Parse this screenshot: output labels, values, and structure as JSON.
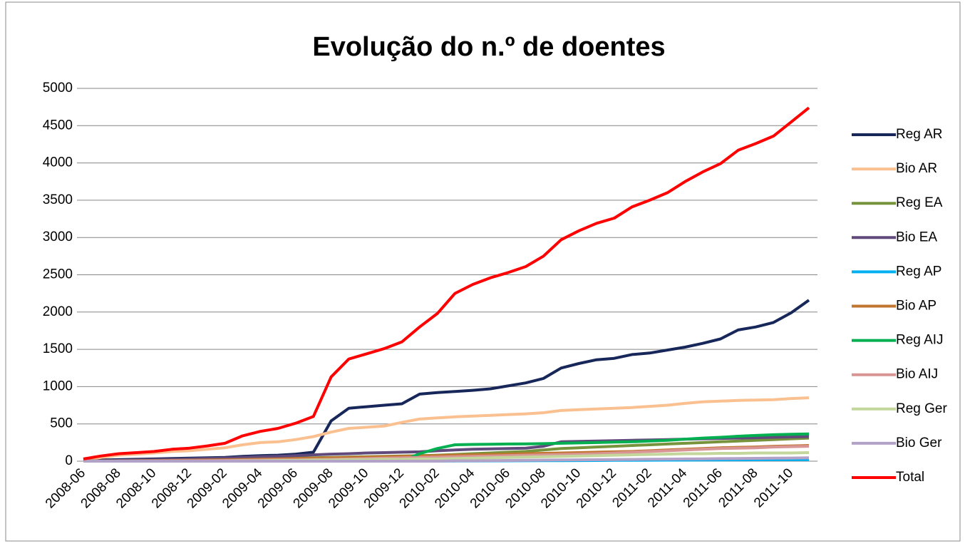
{
  "chart_data": {
    "type": "line",
    "title": "Evolução do n.º de doentes",
    "categories": [
      "2008-06",
      null,
      "2008-08",
      null,
      "2008-10",
      null,
      "2008-12",
      null,
      "2009-02",
      null,
      "2009-04",
      null,
      "2009-06",
      null,
      "2009-08",
      null,
      "2009-10",
      null,
      "2009-12",
      null,
      "2010-02",
      null,
      "2010-04",
      null,
      "2010-06",
      null,
      "2010-08",
      null,
      "2010-10",
      null,
      "2010-12",
      null,
      "2011-02",
      null,
      "2011-04",
      null,
      "2011-06",
      null,
      "2011-08",
      null,
      "2011-10",
      null
    ],
    "ylim": [
      0,
      5000
    ],
    "yticks": [
      0,
      500,
      1000,
      1500,
      2000,
      2500,
      3000,
      3500,
      4000,
      4500,
      5000
    ],
    "grid": true,
    "legend": "right",
    "series": [
      {
        "name": "Reg AR",
        "color": "#17275a",
        "values": [
          5,
          15,
          20,
          25,
          30,
          35,
          40,
          45,
          50,
          65,
          75,
          80,
          95,
          120,
          540,
          710,
          730,
          750,
          770,
          900,
          920,
          935,
          950,
          970,
          1010,
          1050,
          1110,
          1250,
          1310,
          1360,
          1380,
          1430,
          1450,
          1490,
          1530,
          1580,
          1640,
          1760,
          1800,
          1860,
          1990,
          2160
        ]
      },
      {
        "name": "Bio AR",
        "color": "#fac090",
        "values": [
          20,
          50,
          80,
          95,
          110,
          130,
          140,
          160,
          180,
          220,
          250,
          260,
          290,
          330,
          390,
          440,
          455,
          470,
          520,
          565,
          580,
          595,
          605,
          615,
          625,
          635,
          650,
          680,
          690,
          700,
          710,
          720,
          735,
          750,
          775,
          795,
          805,
          815,
          820,
          825,
          840,
          850
        ]
      },
      {
        "name": "Reg EA",
        "color": "#77933c",
        "values": [
          0,
          2,
          5,
          8,
          10,
          12,
          15,
          18,
          20,
          25,
          30,
          35,
          40,
          45,
          50,
          55,
          60,
          65,
          70,
          75,
          80,
          90,
          100,
          110,
          120,
          130,
          150,
          170,
          180,
          190,
          200,
          210,
          220,
          230,
          240,
          250,
          260,
          270,
          280,
          290,
          300,
          310
        ]
      },
      {
        "name": "Bio EA",
        "color": "#604a7b",
        "values": [
          0,
          5,
          10,
          15,
          20,
          25,
          30,
          35,
          40,
          50,
          60,
          65,
          75,
          85,
          95,
          100,
          110,
          115,
          120,
          125,
          140,
          150,
          160,
          165,
          170,
          175,
          200,
          260,
          265,
          270,
          275,
          280,
          285,
          290,
          295,
          300,
          305,
          310,
          315,
          320,
          325,
          330
        ]
      },
      {
        "name": "Reg AP",
        "color": "#00b0f0",
        "values": [
          0,
          0,
          0,
          0,
          0,
          0,
          0,
          0,
          0,
          0,
          0,
          0,
          0,
          0,
          0,
          0,
          0,
          0,
          0,
          0,
          1,
          2,
          3,
          4,
          5,
          6,
          7,
          8,
          9,
          10,
          11,
          12,
          13,
          14,
          15,
          16,
          17,
          18,
          19,
          20,
          20,
          20
        ]
      },
      {
        "name": "Bio AP",
        "color": "#c0762e",
        "values": [
          0,
          2,
          4,
          6,
          8,
          10,
          12,
          15,
          18,
          22,
          26,
          30,
          35,
          40,
          45,
          50,
          55,
          60,
          65,
          70,
          75,
          80,
          85,
          90,
          95,
          100,
          105,
          110,
          115,
          120,
          125,
          130,
          140,
          150,
          160,
          170,
          180,
          185,
          190,
          200,
          205,
          210
        ]
      },
      {
        "name": "Reg AIJ",
        "color": "#00b050",
        "values": [
          0,
          0,
          0,
          0,
          0,
          0,
          0,
          0,
          0,
          0,
          0,
          0,
          0,
          0,
          0,
          0,
          0,
          0,
          0,
          100,
          170,
          220,
          225,
          228,
          230,
          232,
          235,
          240,
          245,
          250,
          255,
          260,
          270,
          280,
          295,
          310,
          320,
          335,
          345,
          355,
          360,
          365
        ]
      },
      {
        "name": "Bio AIJ",
        "color": "#d99594",
        "values": [
          0,
          1,
          2,
          3,
          4,
          5,
          6,
          8,
          10,
          12,
          14,
          16,
          18,
          20,
          25,
          30,
          35,
          40,
          45,
          50,
          55,
          60,
          65,
          70,
          75,
          80,
          85,
          90,
          95,
          100,
          110,
          120,
          130,
          140,
          150,
          160,
          170,
          175,
          180,
          190,
          195,
          200
        ]
      },
      {
        "name": "Reg Ger",
        "color": "#c3d69b",
        "values": [
          0,
          0,
          0,
          0,
          0,
          0,
          0,
          0,
          0,
          5,
          5,
          10,
          10,
          15,
          15,
          20,
          20,
          25,
          25,
          30,
          30,
          35,
          40,
          45,
          50,
          55,
          60,
          65,
          70,
          75,
          80,
          85,
          90,
          95,
          100,
          100,
          105,
          105,
          110,
          110,
          110,
          115
        ]
      },
      {
        "name": "Bio Ger",
        "color": "#b3a2c7",
        "values": [
          0,
          0,
          0,
          0,
          0,
          0,
          0,
          0,
          0,
          0,
          0,
          0,
          0,
          0,
          0,
          0,
          0,
          0,
          0,
          0,
          0,
          5,
          5,
          8,
          10,
          12,
          14,
          16,
          18,
          20,
          22,
          24,
          26,
          28,
          30,
          32,
          34,
          36,
          38,
          40,
          42,
          45
        ]
      },
      {
        "name": "Total",
        "color": "#ff0000",
        "values": [
          30,
          70,
          100,
          115,
          130,
          160,
          175,
          205,
          240,
          340,
          400,
          440,
          510,
          600,
          1130,
          1370,
          1440,
          1510,
          1600,
          1800,
          1980,
          2250,
          2370,
          2460,
          2530,
          2610,
          2750,
          2970,
          3090,
          3190,
          3260,
          3410,
          3500,
          3600,
          3750,
          3880,
          3990,
          4170,
          4260,
          4360,
          4550,
          4740
        ]
      }
    ]
  }
}
